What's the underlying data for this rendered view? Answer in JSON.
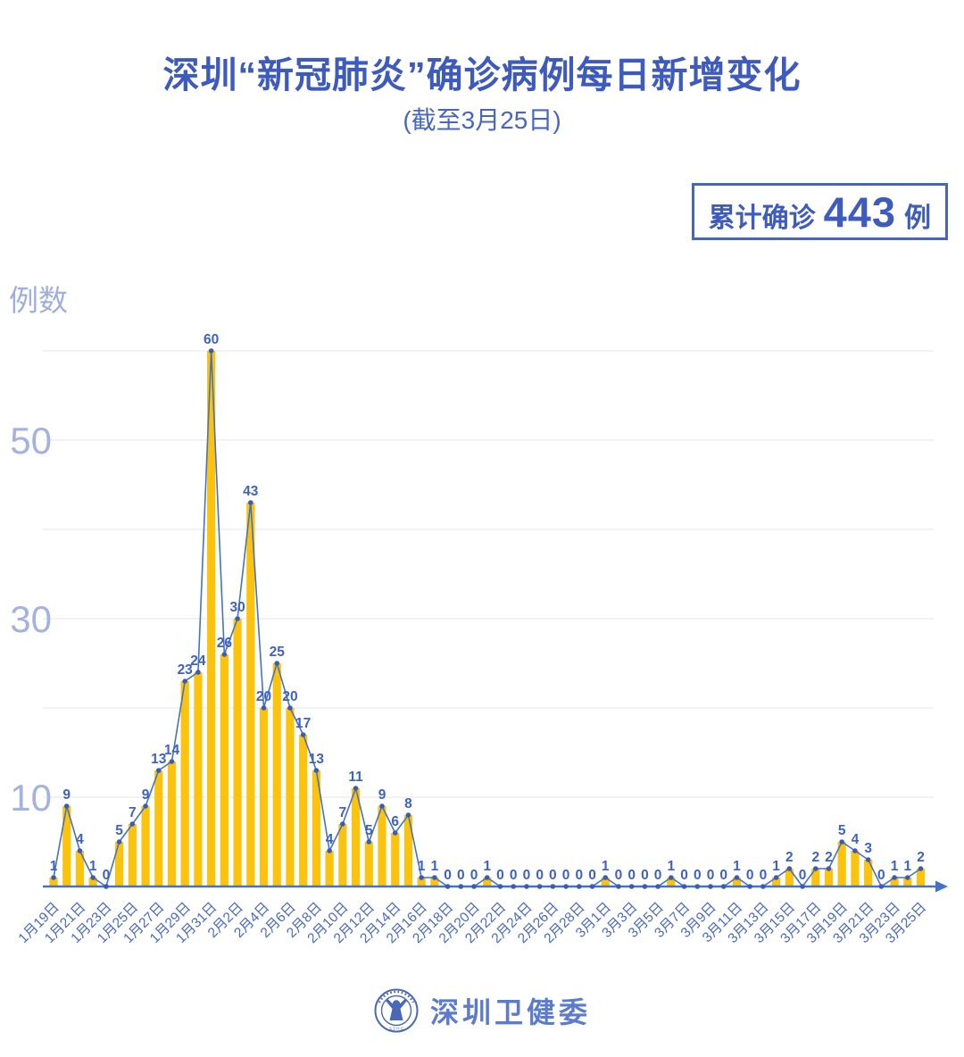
{
  "header": {
    "title": "深圳“新冠肺炎”确诊病例每日新增变化",
    "subtitle": "(截至3月25日)"
  },
  "badge": {
    "prefix": "累计确诊",
    "number": "443",
    "suffix": "例"
  },
  "footer": {
    "org": "深圳卫健委",
    "logo": "szhc-emblem",
    "logo_caption": "S Z H C"
  },
  "colors": {
    "title_blue": "#3D5ABF",
    "label_blue": "#3E62C4",
    "x_label_blue": "#4A69C6",
    "axis_light": "#A3B2E0",
    "grid": "#E9E9E9",
    "marker_blue": "#3A5CB8"
  },
  "chart_data": {
    "type": "bar",
    "overlay": "line with point markers and value labels",
    "title": "深圳“新冠肺炎”确诊病例每日新增变化 (截至3月25日)",
    "xlabel": "",
    "ylabel": "例数",
    "ylim": [
      0,
      62
    ],
    "grid": "horizontal",
    "gridline_values": [
      10,
      20,
      30,
      40,
      50,
      60
    ],
    "y_tick_values": [
      10,
      30,
      50
    ],
    "x_tick_step": 2,
    "x_tick_rotation_deg": -45,
    "bar_color": "#FCC30D",
    "line_color": "#4472C4",
    "categories": [
      "1月19日",
      "1月20日",
      "1月21日",
      "1月22日",
      "1月23日",
      "1月24日",
      "1月25日",
      "1月26日",
      "1月27日",
      "1月28日",
      "1月29日",
      "1月30日",
      "1月31日",
      "2月1日",
      "2月2日",
      "2月3日",
      "2月4日",
      "2月5日",
      "2月6日",
      "2月7日",
      "2月8日",
      "2月9日",
      "2月10日",
      "2月11日",
      "2月12日",
      "2月13日",
      "2月14日",
      "2月15日",
      "2月16日",
      "2月17日",
      "2月18日",
      "2月19日",
      "2月20日",
      "2月21日",
      "2月22日",
      "2月23日",
      "2月24日",
      "2月25日",
      "2月26日",
      "2月27日",
      "2月28日",
      "2月29日",
      "3月1日",
      "3月2日",
      "3月3日",
      "3月4日",
      "3月5日",
      "3月6日",
      "3月7日",
      "3月8日",
      "3月9日",
      "3月10日",
      "3月11日",
      "3月12日",
      "3月13日",
      "3月14日",
      "3月15日",
      "3月16日",
      "3月17日",
      "3月18日",
      "3月19日",
      "3月20日",
      "3月21日",
      "3月22日",
      "3月23日",
      "3月24日",
      "3月25日"
    ],
    "values": [
      1,
      9,
      4,
      1,
      0,
      5,
      7,
      9,
      13,
      14,
      23,
      24,
      60,
      26,
      30,
      43,
      20,
      25,
      20,
      17,
      13,
      4,
      7,
      11,
      5,
      9,
      6,
      8,
      1,
      1,
      0,
      0,
      0,
      1,
      0,
      0,
      0,
      0,
      0,
      0,
      0,
      0,
      1,
      0,
      0,
      0,
      0,
      1,
      0,
      0,
      0,
      0,
      1,
      0,
      0,
      1,
      2,
      0,
      2,
      2,
      5,
      4,
      3,
      0,
      1,
      1,
      2
    ],
    "cumulative_total": 443
  }
}
